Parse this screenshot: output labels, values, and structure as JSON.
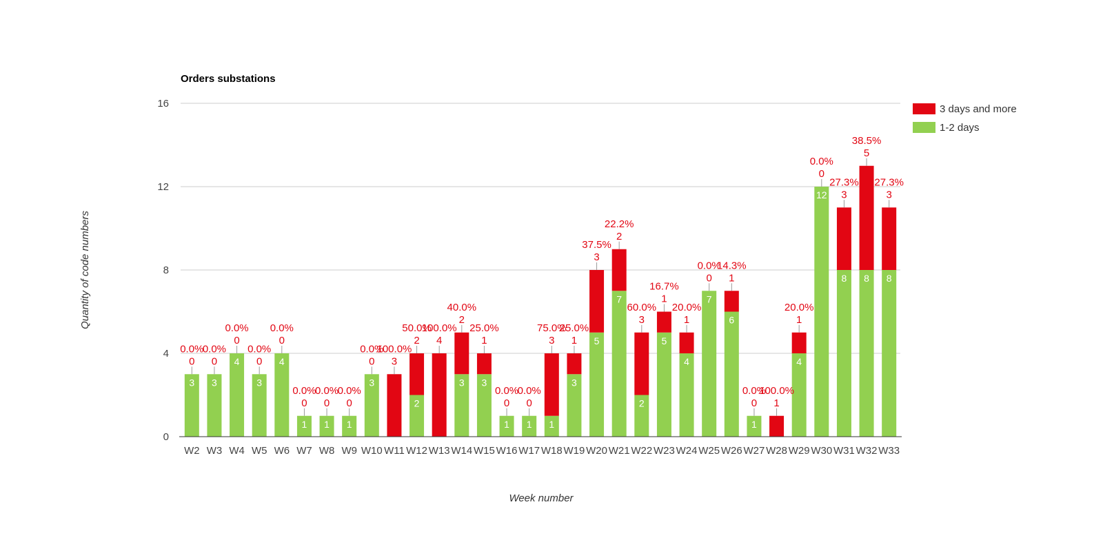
{
  "chart_data": {
    "type": "bar",
    "stacked": true,
    "title": "Orders substations",
    "xlabel": "Week number",
    "ylabel": "Quantity of code numbers",
    "ylim": [
      0,
      16
    ],
    "yticks": [
      0,
      4,
      8,
      12,
      16
    ],
    "grid": true,
    "legend_position": "right",
    "categories": [
      "W2",
      "W3",
      "W4",
      "W5",
      "W6",
      "W7",
      "W8",
      "W9",
      "W10",
      "W11",
      "W12",
      "W13",
      "W14",
      "W15",
      "W16",
      "W17",
      "W18",
      "W19",
      "W20",
      "W21",
      "W22",
      "W23",
      "W24",
      "W25",
      "W26",
      "W27",
      "W28",
      "W29",
      "W30",
      "W31",
      "W32",
      "W33"
    ],
    "series": [
      {
        "name": "1-2 days",
        "color": "#92d050",
        "values": [
          3,
          3,
          4,
          3,
          4,
          1,
          1,
          1,
          3,
          0,
          2,
          0,
          3,
          3,
          1,
          1,
          1,
          3,
          5,
          7,
          2,
          5,
          4,
          7,
          6,
          1,
          0,
          4,
          12,
          8,
          8,
          8
        ]
      },
      {
        "name": "3 days and more",
        "color": "#e20613",
        "values": [
          0,
          0,
          0,
          0,
          0,
          0,
          0,
          0,
          0,
          3,
          2,
          4,
          2,
          1,
          0,
          0,
          3,
          1,
          3,
          2,
          3,
          1,
          1,
          0,
          1,
          0,
          1,
          1,
          0,
          3,
          5,
          3
        ]
      }
    ],
    "annotations": [
      "0.0%",
      "0.0%",
      "0.0%",
      "0.0%",
      "0.0%",
      "0.0%",
      "0.0%",
      "0.0%",
      "0.0%",
      "100.0%",
      "50.0%",
      "100.0%",
      "40.0%",
      "25.0%",
      "0.0%",
      "0.0%",
      "75.0%",
      "25.0%",
      "37.5%",
      "22.2%",
      "60.0%",
      "16.7%",
      "20.0%",
      "0.0%",
      "14.3%",
      "0.0%",
      "100.0%",
      "20.0%",
      "0.0%",
      "27.3%",
      "38.5%",
      "27.3%"
    ],
    "annotation_color": "#e20613"
  }
}
